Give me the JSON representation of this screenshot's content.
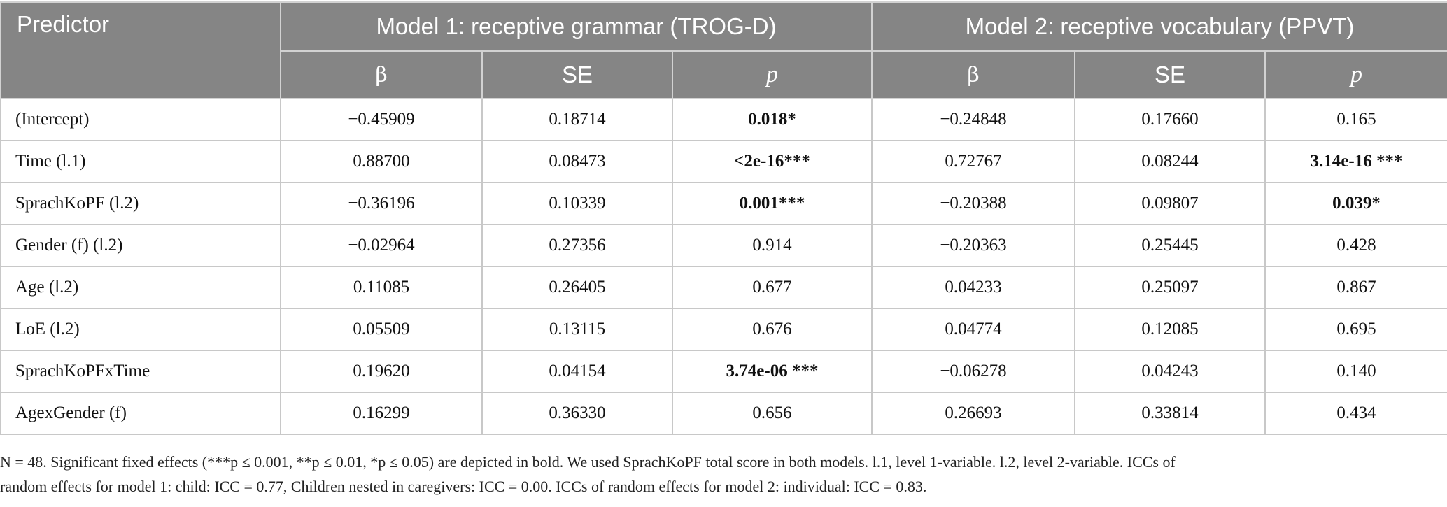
{
  "header": {
    "predictor": "Predictor",
    "model1": "Model 1: receptive grammar (TROG-D)",
    "model2": "Model 2: receptive vocabulary (PPVT)",
    "beta": "β",
    "se": "SE",
    "p": "p"
  },
  "rows": [
    {
      "predictor": "(Intercept)",
      "m1_beta": "−0.45909",
      "m1_se": "0.18714",
      "m1_p": "0.018*",
      "m2_beta": "−0.24848",
      "m2_se": "0.17660",
      "m2_p": "0.165"
    },
    {
      "predictor": "Time (l.1)",
      "m1_beta": "0.88700",
      "m1_se": "0.08473",
      "m1_p": "<2e-16***",
      "m2_beta": "0.72767",
      "m2_se": "0.08244",
      "m2_p": "3.14e-16 ***"
    },
    {
      "predictor": "SprachKoPF (l.2)",
      "m1_beta": "−0.36196",
      "m1_se": "0.10339",
      "m1_p": "0.001***",
      "m2_beta": "−0.20388",
      "m2_se": "0.09807",
      "m2_p": "0.039*"
    },
    {
      "predictor": "Gender (f) (l.2)",
      "m1_beta": "−0.02964",
      "m1_se": "0.27356",
      "m1_p": "0.914",
      "m2_beta": "−0.20363",
      "m2_se": "0.25445",
      "m2_p": "0.428"
    },
    {
      "predictor": "Age (l.2)",
      "m1_beta": "0.11085",
      "m1_se": "0.26405",
      "m1_p": "0.677",
      "m2_beta": "0.04233",
      "m2_se": "0.25097",
      "m2_p": "0.867"
    },
    {
      "predictor": "LoE (l.2)",
      "m1_beta": "0.05509",
      "m1_se": "0.13115",
      "m1_p": "0.676",
      "m2_beta": "0.04774",
      "m2_se": "0.12085",
      "m2_p": "0.695"
    },
    {
      "predictor": "SprachKoPFxTime",
      "m1_beta": "0.19620",
      "m1_se": "0.04154",
      "m1_p": "3.74e-06 ***",
      "m2_beta": "−0.06278",
      "m2_se": "0.04243",
      "m2_p": "0.140"
    },
    {
      "predictor": "AgexGender (f)",
      "m1_beta": "0.16299",
      "m1_se": "0.36330",
      "m1_p": "0.656",
      "m2_beta": "0.26693",
      "m2_se": "0.33814",
      "m2_p": "0.434"
    }
  ],
  "note": {
    "line1": "N = 48. Significant fixed effects (***p ≤ 0.001, **p ≤ 0.01, *p ≤ 0.05) are depicted in bold. We used SprachKoPF total score in both models. l.1, level 1-variable. l.2, level 2-variable. ICCs of",
    "line2": "random effects for model 1: child: ICC = 0.77, Children nested in caregivers: ICC = 0.00. ICCs of random effects for model 2: individual: ICC = 0.83."
  },
  "colors": {
    "header_bg": "#858585",
    "header_text": "#ffffff",
    "grid": "#c8c8c8"
  }
}
